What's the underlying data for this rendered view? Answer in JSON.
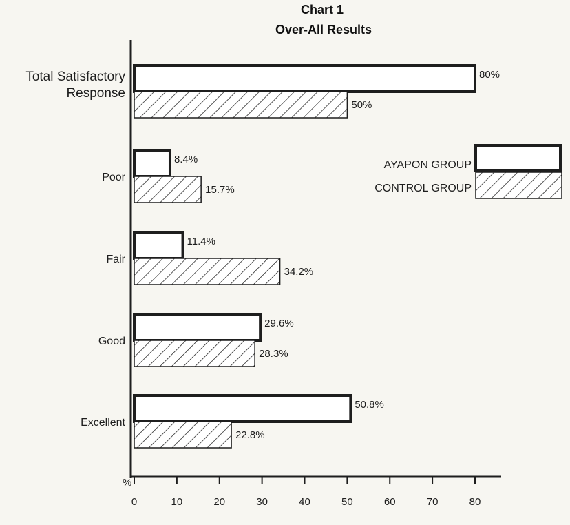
{
  "chart_data": {
    "type": "bar",
    "orientation": "horizontal",
    "title": "Chart 1",
    "subtitle": "Over-All Results",
    "categories": [
      "Total Satisfactory Response",
      "Poor",
      "Fair",
      "Good",
      "Excellent"
    ],
    "category_lines": [
      [
        "Total Satisfactory",
        "Response"
      ],
      [
        "Poor"
      ],
      [
        "Fair"
      ],
      [
        "Good"
      ],
      [
        "Excellent"
      ]
    ],
    "series": [
      {
        "name": "AYAPON GROUP",
        "fill": "open",
        "values": [
          80,
          8.4,
          11.4,
          29.6,
          50.8
        ],
        "labels": [
          "80%",
          "8.4%",
          "11.4%",
          "29.6%",
          "50.8%"
        ]
      },
      {
        "name": "CONTROL GROUP",
        "fill": "hatched",
        "values": [
          50,
          15.7,
          34.2,
          28.3,
          22.8
        ],
        "labels": [
          "50%",
          "15.7%",
          "34.2%",
          "28.3%",
          "22.8%"
        ]
      }
    ],
    "xlabel": "%",
    "xticks": [
      0,
      10,
      20,
      30,
      40,
      50,
      60,
      70,
      80
    ],
    "xlim": [
      0,
      80
    ],
    "grid": false,
    "legend_position": "right"
  },
  "colors": {
    "background": "#f7f6f1",
    "bar_fill": "#ffffff",
    "ink": "#1e1e1e"
  }
}
